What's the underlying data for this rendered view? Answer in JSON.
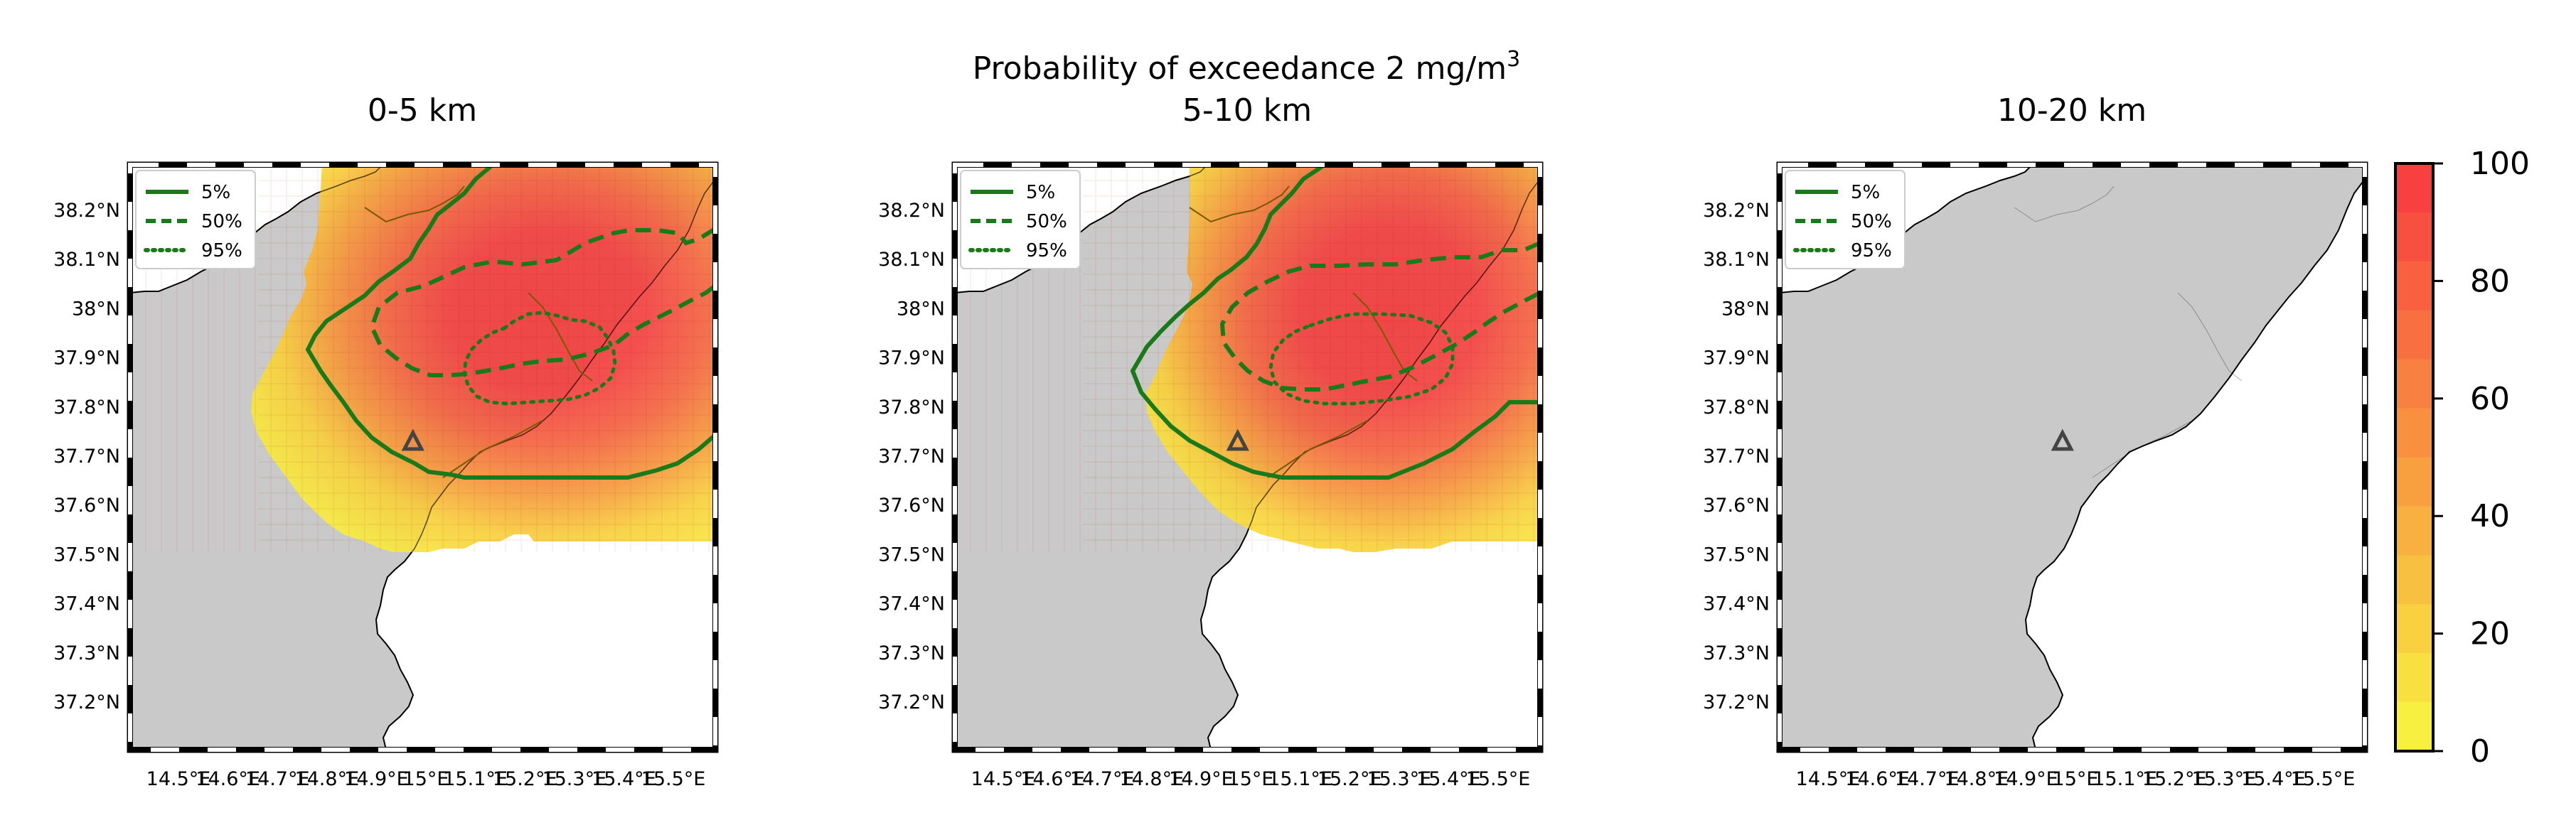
{
  "figure": {
    "suptitle": "Probability of exceedance 2 mg/m",
    "suptitle_sup": "3"
  },
  "panels": [
    {
      "title": "0-5 km"
    },
    {
      "title": "5-10 km"
    },
    {
      "title": "10-20 km"
    }
  ],
  "legend": {
    "entries": [
      {
        "label": "5%",
        "style": "solid"
      },
      {
        "label": "50%",
        "style": "dashed"
      },
      {
        "label": "95%",
        "style": "dotted"
      }
    ]
  },
  "axes": {
    "lat_ticks": [
      "38.2°N",
      "38.1°N",
      "38°N",
      "37.9°N",
      "37.8°N",
      "37.7°N",
      "37.6°N",
      "37.5°N",
      "37.4°N",
      "37.3°N",
      "37.2°N"
    ],
    "lon_ticks": [
      "14.5°E",
      "14.6°E",
      "14.7°E",
      "14.8°E",
      "14.9°E",
      "15°E",
      "15.1°E",
      "15.2°E",
      "15.3°E",
      "15.4°E",
      "15.5°E"
    ]
  },
  "colorbar": {
    "ticks": [
      "100",
      "80",
      "60",
      "40",
      "20",
      "0"
    ],
    "colors": [
      "#f84040",
      "#f85040",
      "#f86040",
      "#f87040",
      "#f88040",
      "#f89040",
      "#f8a040",
      "#f8b040",
      "#f8c040",
      "#f8d040",
      "#f8e040",
      "#f8f040"
    ]
  },
  "colors": {
    "land": "#c9c9c9",
    "contour": "#1a7a1a",
    "vent_marker": "#444444"
  },
  "map_data": {
    "lon_range": [
      14.42,
      15.62
    ],
    "lat_range": [
      37.1,
      38.3
    ],
    "vent": {
      "name": "",
      "lon": 15.0,
      "lat": 37.73
    },
    "contours_levels_percent": [
      5,
      50,
      95
    ]
  }
}
